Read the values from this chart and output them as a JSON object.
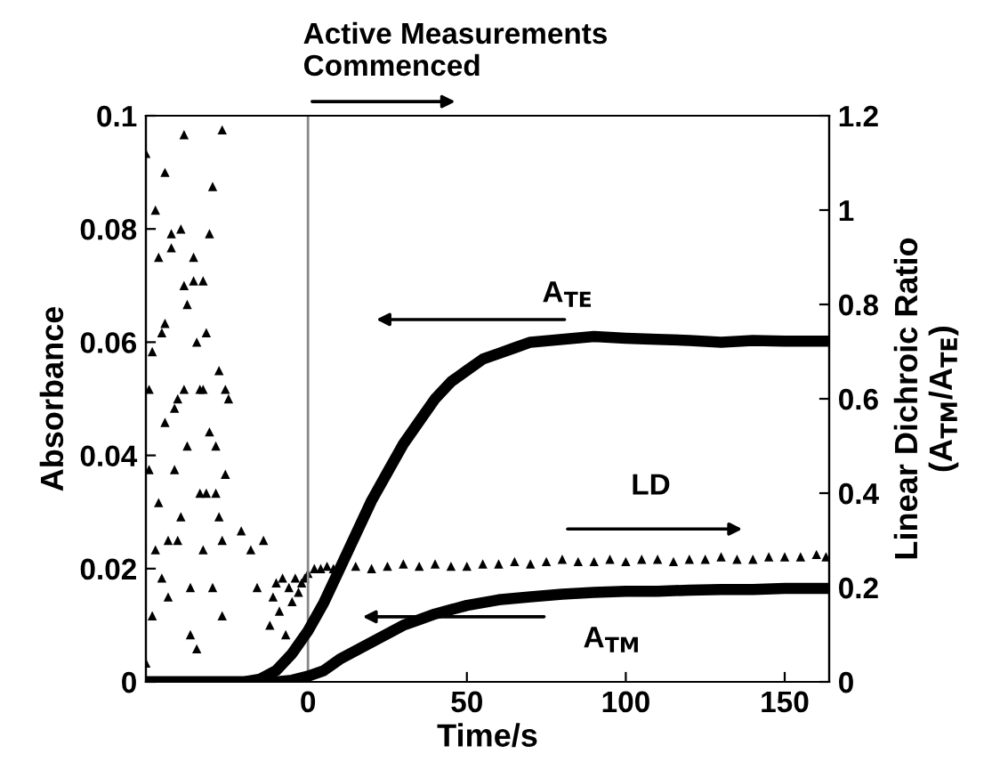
{
  "chart_data": {
    "type": "line",
    "xlabel": "Time/s",
    "ylabel": "Absorbance",
    "y2label": "Linear Dichroic Ratio\n(A$_{TM}$/A$_{TE}$)",
    "xlim": [
      -51,
      164
    ],
    "xticks": [
      0,
      50,
      100,
      150
    ],
    "ylim": [
      0,
      0.1
    ],
    "yticks": [
      0,
      0.02,
      0.04,
      0.06,
      0.08,
      0.1
    ],
    "y2lim": [
      0,
      1.2
    ],
    "y2ticks": [
      0,
      0.2,
      0.4,
      0.6,
      0.8,
      1,
      1.2
    ],
    "grid": false,
    "legend": false,
    "ref_lines": [
      {
        "axis": "x",
        "value": 0,
        "label": null,
        "color": "#888888"
      }
    ],
    "annotations": [
      "Active Measurements\nCommenced",
      "A$_{TE}$",
      "LD",
      "A$_{TM}$"
    ],
    "series": [
      {
        "color": "#000000",
        "marker": "none",
        "x": [
          -51,
          -30,
          -20,
          -15,
          -10,
          -5,
          0,
          5,
          10,
          15,
          20,
          25,
          30,
          35,
          40,
          45,
          50,
          55,
          60,
          65,
          70,
          80,
          90,
          100,
          110,
          120,
          130,
          140,
          150,
          164
        ],
        "values": [
          0,
          0,
          0,
          0.0005,
          0.002,
          0.005,
          0.009,
          0.014,
          0.02,
          0.026,
          0.032,
          0.037,
          0.042,
          0.046,
          0.05,
          0.053,
          0.055,
          0.057,
          0.058,
          0.059,
          0.06,
          0.0605,
          0.061,
          0.0607,
          0.0605,
          0.0603,
          0.06,
          0.0603,
          0.0602,
          0.0602
        ]
      },
      {
        "color": "#000000",
        "marker": "none",
        "x": [
          -51,
          -10,
          -5,
          0,
          5,
          10,
          15,
          20,
          25,
          30,
          35,
          40,
          50,
          60,
          70,
          80,
          90,
          100,
          110,
          120,
          130,
          140,
          150,
          164
        ],
        "values": [
          0,
          0,
          0.0003,
          0.001,
          0.002,
          0.004,
          0.0055,
          0.007,
          0.0085,
          0.01,
          0.011,
          0.012,
          0.0135,
          0.0145,
          0.015,
          0.0155,
          0.0158,
          0.016,
          0.016,
          0.0162,
          0.0163,
          0.0163,
          0.0165,
          0.0165
        ]
      },
      {
        "type": "scatter",
        "axis": "y2",
        "color": "#000000",
        "marker": "triangle",
        "x": [
          -51,
          -50,
          -49,
          -48,
          -47,
          -46,
          -45,
          -44,
          -43,
          -42,
          -41,
          -40,
          -39,
          -38,
          -37,
          -36,
          -35,
          -34,
          -33,
          -32,
          -31,
          -30,
          -29,
          -28,
          -27,
          -26,
          -25,
          -50,
          -48,
          -46,
          -44,
          -42,
          -40,
          -38,
          -36,
          -34,
          -32,
          -30,
          -28,
          -26,
          -49,
          -47,
          -45,
          -43,
          -41,
          -39,
          -37,
          -35,
          -33,
          -31,
          -29,
          -27,
          -51,
          -45,
          -39,
          -33,
          -27,
          -21,
          -18,
          -16,
          -14,
          -12,
          -11,
          -10,
          -9,
          -8,
          -7,
          -6,
          -5,
          -4,
          -3,
          -2,
          -1,
          0,
          2,
          4,
          6,
          8,
          10,
          15,
          20,
          25,
          30,
          35,
          40,
          45,
          50,
          55,
          60,
          65,
          70,
          75,
          80,
          85,
          90,
          95,
          100,
          105,
          110,
          115,
          120,
          125,
          130,
          135,
          140,
          145,
          150,
          155,
          160,
          163
        ],
        "values": [
          1.12,
          0.62,
          0.7,
          1.0,
          0.9,
          0.22,
          1.08,
          0.3,
          0.95,
          0.45,
          0.6,
          0.35,
          1.16,
          0.8,
          0.2,
          0.9,
          0.07,
          0.62,
          0.85,
          0.4,
          0.95,
          1.05,
          0.5,
          0.66,
          0.3,
          0.62,
          0.6,
          0.45,
          0.28,
          0.74,
          0.18,
          0.58,
          0.96,
          0.5,
          0.85,
          0.4,
          0.74,
          0.2,
          0.35,
          0.44,
          0.14,
          0.38,
          0.55,
          0.92,
          0.3,
          0.62,
          0.1,
          0.72,
          0.28,
          0.53,
          0.4,
          1.17,
          0.04,
          0.76,
          0.84,
          0.62,
          0.14,
          0.32,
          0.28,
          0.2,
          0.3,
          0.12,
          0.18,
          0.21,
          0.15,
          0.22,
          0.1,
          0.2,
          0.17,
          0.22,
          0.19,
          0.21,
          0.22,
          0.23,
          0.24,
          0.24,
          0.245,
          0.24,
          null,
          0.245,
          0.24,
          0.245,
          0.25,
          0.245,
          0.25,
          0.245,
          0.245,
          0.25,
          0.25,
          0.255,
          0.25,
          0.255,
          0.26,
          0.255,
          0.255,
          0.26,
          0.255,
          0.26,
          0.26,
          0.255,
          0.26,
          0.26,
          0.265,
          0.26,
          0.26,
          0.265,
          0.265,
          0.265,
          0.27,
          0.265
        ]
      }
    ]
  }
}
